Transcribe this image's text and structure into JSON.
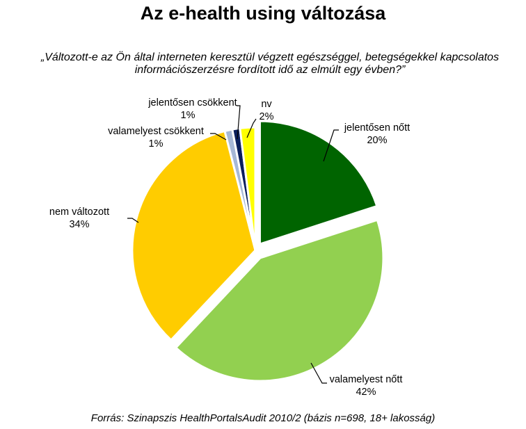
{
  "page": {
    "title": "Az e-health using változása",
    "subtitle_line1": "„Változott-e az Ön által interneten keresztül végzett egészséggel, betegségekkel kapcsolatos",
    "subtitle_line2": "információszerzésre fordított idő az elmúlt egy évben?”",
    "source": "Forrás: Szinapszis HealthPortalsAudit 2010/2 (bázis n=698, 18+ lakosság)"
  },
  "chart_data": {
    "type": "pie",
    "title": "Az e-health using változása",
    "slices": [
      {
        "label": "jelentősen nőtt",
        "value": 20,
        "value_label": "20%",
        "color": "#006400"
      },
      {
        "label": "valamelyest nőtt",
        "value": 42,
        "value_label": "42%",
        "color": "#92D050"
      },
      {
        "label": "nem változott",
        "value": 34,
        "value_label": "34%",
        "color": "#FFCC00"
      },
      {
        "label": "valamelyest csökkent",
        "value": 1,
        "value_label": "1%",
        "color": "#A6B8D6"
      },
      {
        "label": "jelentősen csökkent",
        "value": 1,
        "value_label": "1%",
        "color": "#0A1F5C"
      },
      {
        "label": "nv",
        "value": 2,
        "value_label": "2%",
        "color": "#FFFF00"
      }
    ],
    "legend": "none"
  }
}
